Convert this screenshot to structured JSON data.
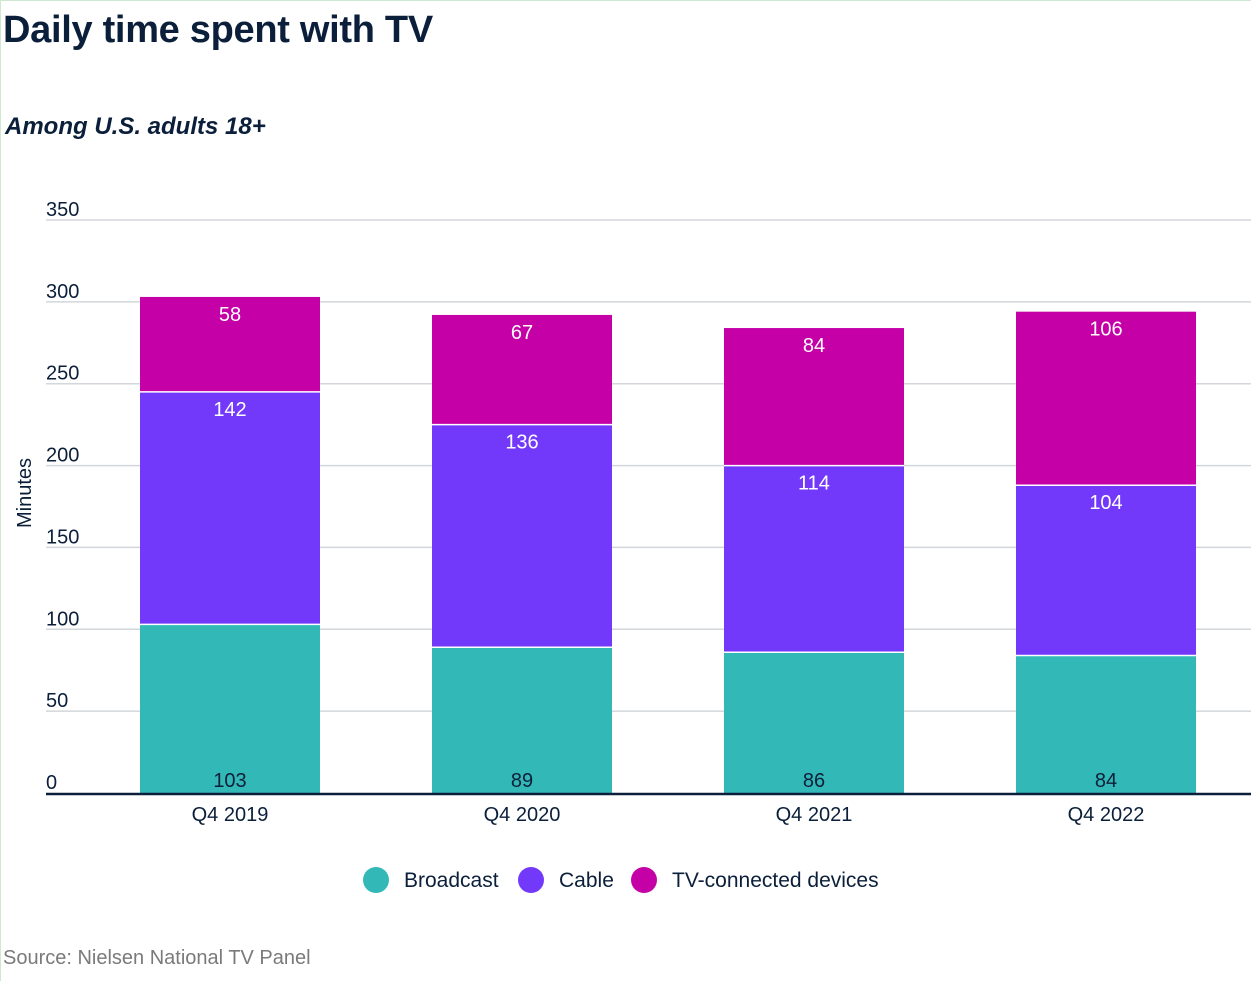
{
  "header": {
    "title": "Daily time spent with TV",
    "subtitle": "Among U.S. adults 18+"
  },
  "footer": {
    "source": "Source: Nielsen National TV Panel"
  },
  "chart_data": {
    "type": "bar",
    "stacked": true,
    "title": "Daily time spent with TV",
    "subtitle": "Among U.S. adults 18+",
    "xlabel": "",
    "ylabel": "Minutes",
    "ylim": [
      0,
      350
    ],
    "yticks": [
      0,
      50,
      100,
      150,
      200,
      250,
      300,
      350
    ],
    "grid": true,
    "legend_position": "bottom-center",
    "categories": [
      "Q4 2019",
      "Q4 2020",
      "Q4 2021",
      "Q4 2022"
    ],
    "series": [
      {
        "name": "Broadcast",
        "color": "#33b8b8",
        "values": [
          103,
          89,
          86,
          84
        ]
      },
      {
        "name": "Cable",
        "color": "#7339fb",
        "values": [
          142,
          136,
          114,
          104
        ]
      },
      {
        "name": "TV-connected devices",
        "color": "#c400a6",
        "values": [
          58,
          67,
          84,
          106
        ]
      }
    ]
  }
}
